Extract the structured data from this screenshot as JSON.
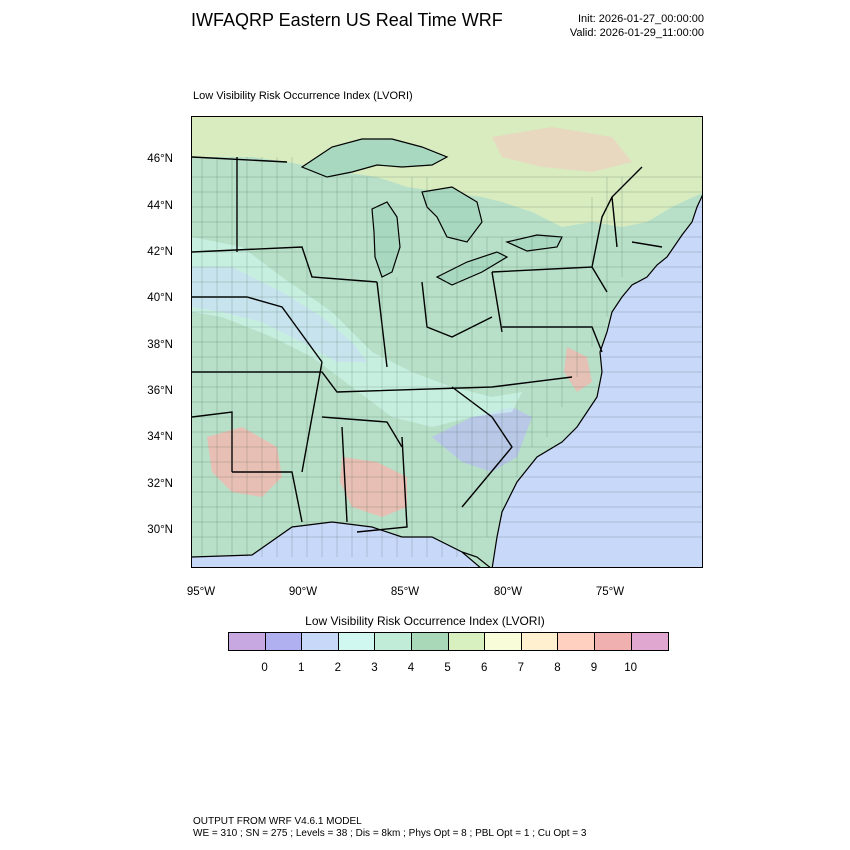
{
  "header": {
    "title": "IWFAQRP Eastern US Real Time WRF",
    "init": "Init: 2026-01-27_00:00:00",
    "valid": "Valid: 2026-01-29_11:00:00"
  },
  "map": {
    "subtitle": "Low Visibility Risk Occurrence Index   (LVORI)",
    "lat_labels": [
      "46°N",
      "44°N",
      "42°N",
      "40°N",
      "38°N",
      "36°N",
      "34°N",
      "32°N",
      "30°N"
    ],
    "lon_labels": [
      "95°W",
      "90°W",
      "85°W",
      "80°W",
      "75°W"
    ],
    "colors": {
      "land": "#b8e0c8",
      "water": "#c8d8f8",
      "lakes": "#a8d8c0",
      "land_north": "#d0e8c8",
      "high_risk": "#f0b8b0",
      "low_risk": "#b8c0f0",
      "border": "#000000"
    }
  },
  "colorbar": {
    "title": "Low Visibility Risk Occurrence Index  (LVORI)",
    "colors": [
      "#c8a8e0",
      "#b0b0f0",
      "#c8d8f8",
      "#d0f8f0",
      "#c0ecd8",
      "#a8d8b8",
      "#d8f0c0",
      "#f8fcd8",
      "#fff0d0",
      "#ffd0c0",
      "#f0b0b0",
      "#e0a8d0"
    ],
    "ticks": [
      "0",
      "1",
      "2",
      "3",
      "4",
      "5",
      "6",
      "7",
      "8",
      "9",
      "10"
    ]
  },
  "footer": {
    "line1": "OUTPUT FROM WRF V4.6.1 MODEL",
    "line2": "WE = 310 ; SN = 275 ; Levels = 38 ; Dis = 8km ; Phys Opt = 8 ; PBL Opt = 1 ; Cu Opt = 3"
  }
}
